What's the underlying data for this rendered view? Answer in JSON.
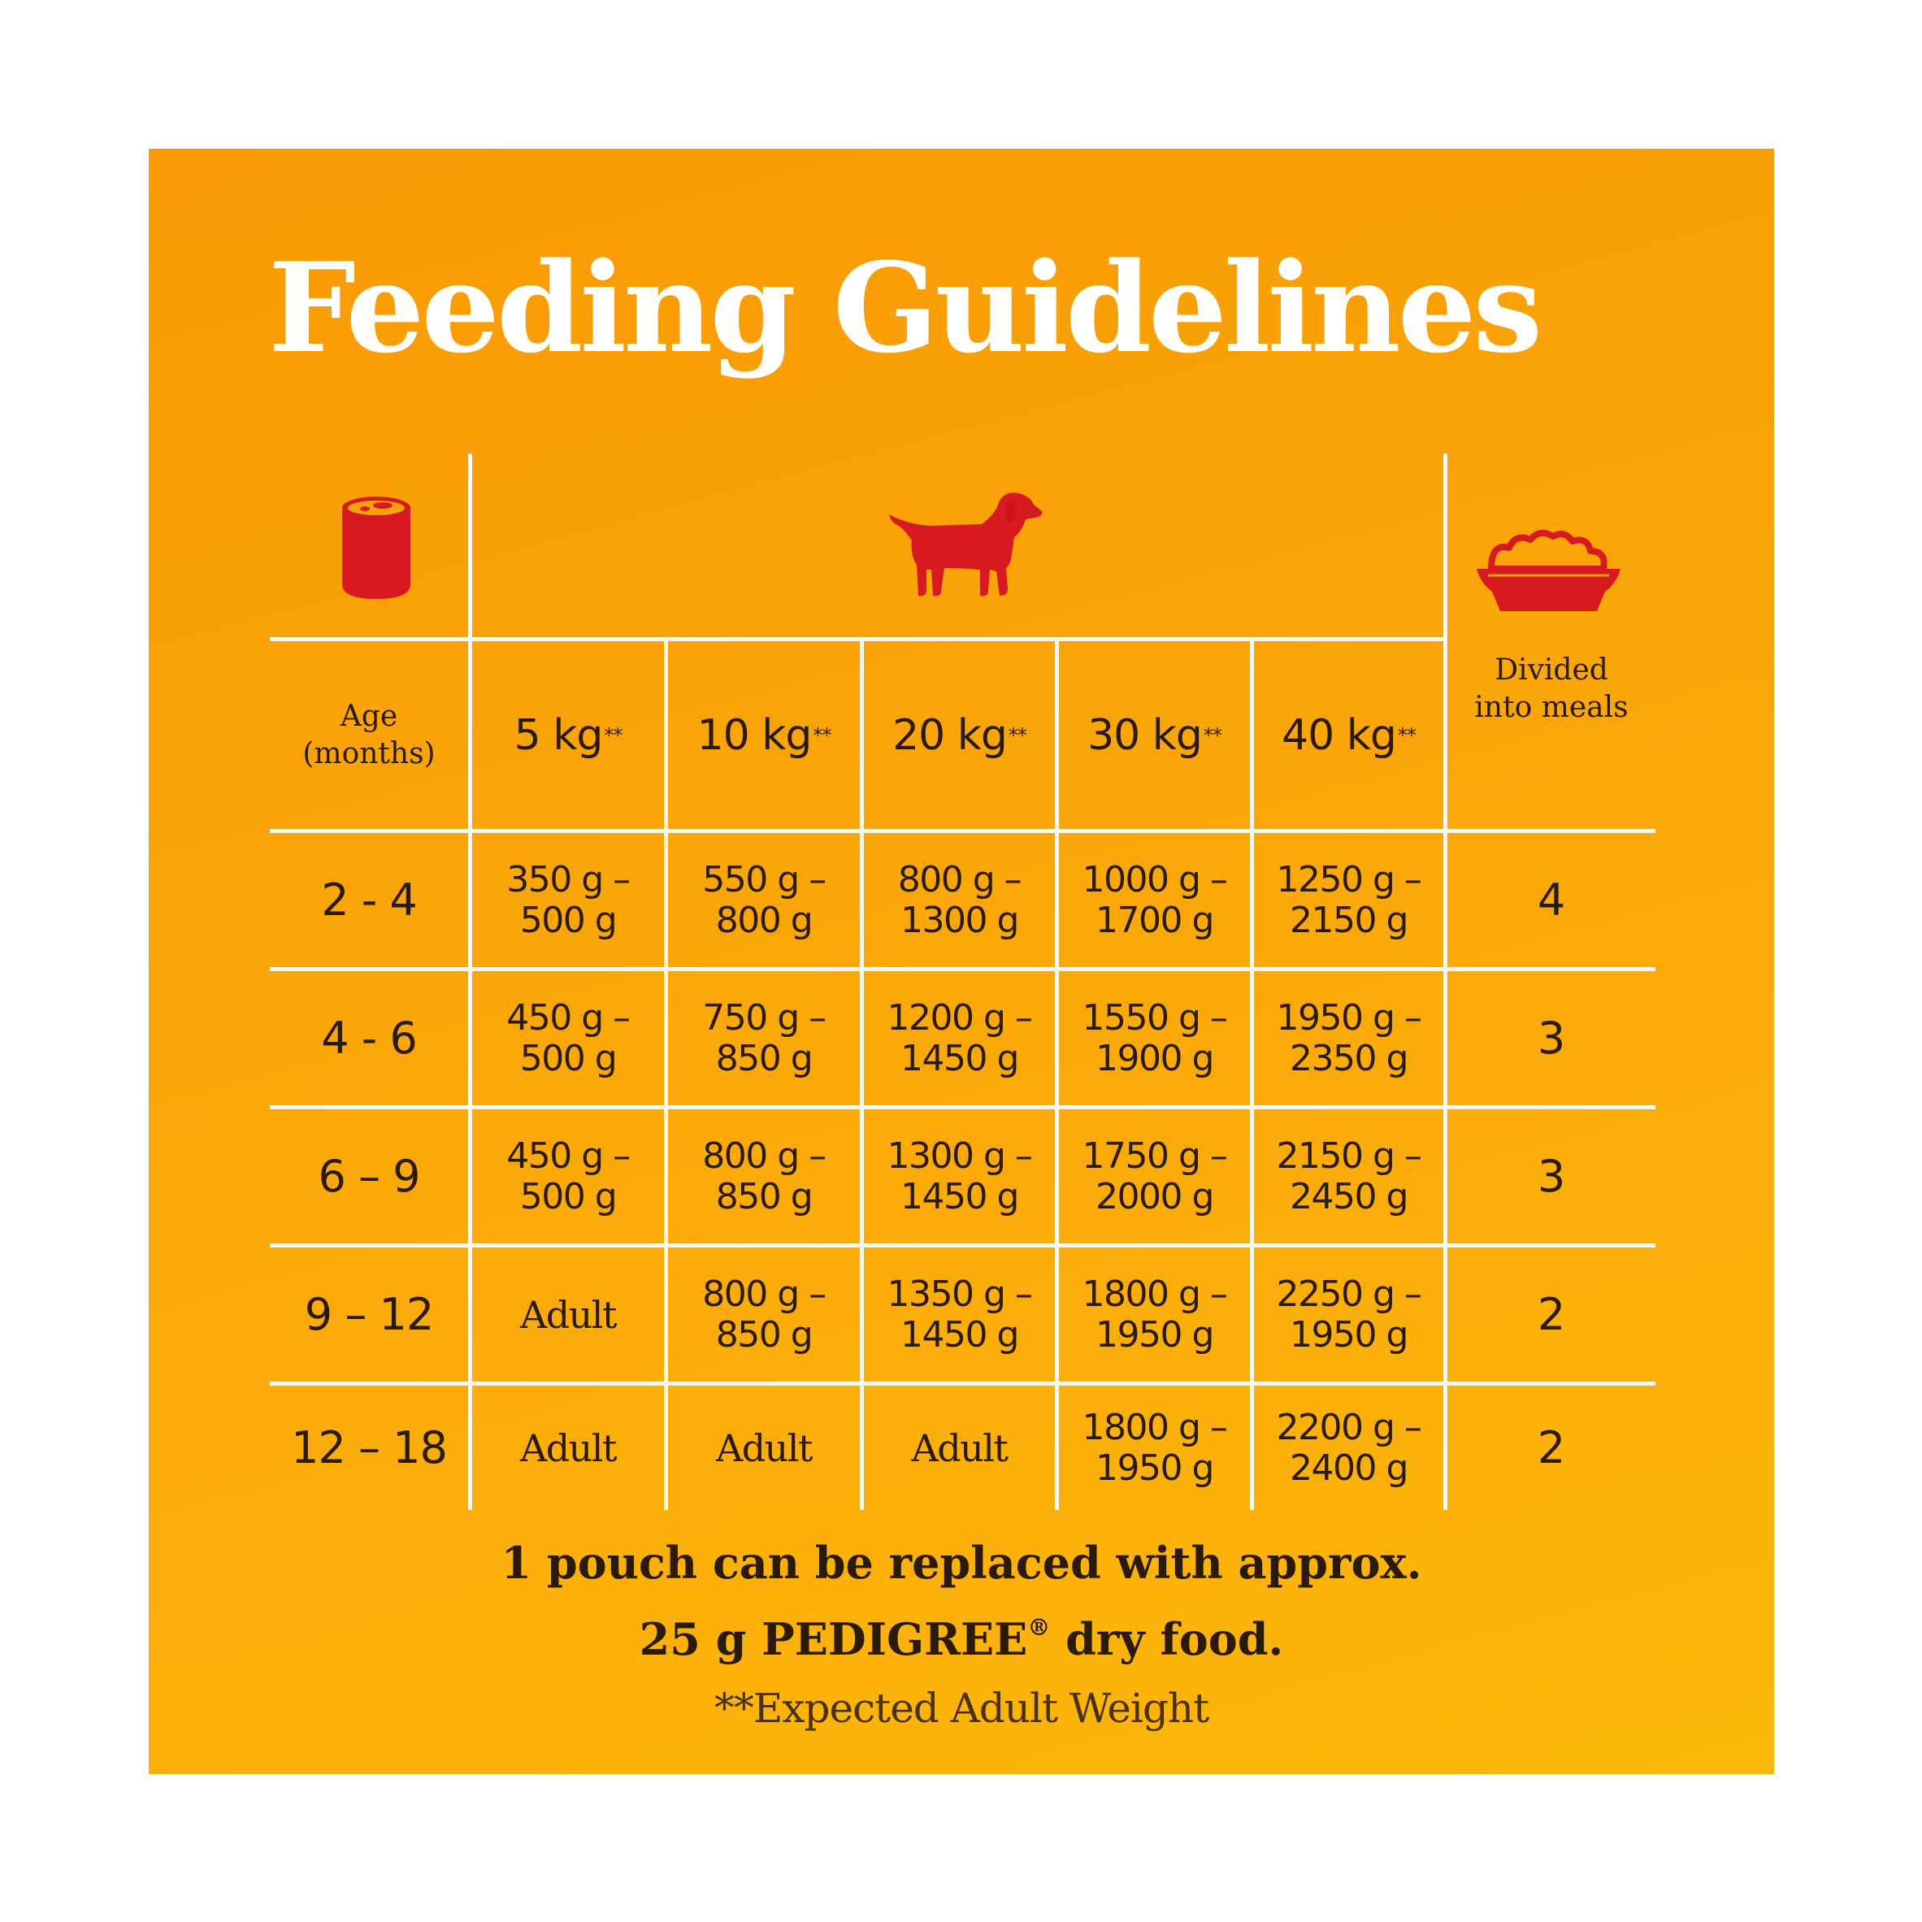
{
  "title": "Feeding Guidelines",
  "icons": {
    "pouch": "can-icon",
    "dog": "puppy-icon",
    "bowl": "food-bowl-icon"
  },
  "colors": {
    "panel_top": "#f99a06",
    "panel_bottom": "#fcb80b",
    "icon_red": "#d71920",
    "text": "#2b1a06"
  },
  "table": {
    "headers": {
      "age": "Age\n(months)",
      "weights": [
        {
          "label": "5 kg",
          "mark": "**"
        },
        {
          "label": "10 kg",
          "mark": "**"
        },
        {
          "label": "20 kg",
          "mark": "**"
        },
        {
          "label": "30 kg",
          "mark": "**"
        },
        {
          "label": "40 kg",
          "mark": "**"
        }
      ],
      "meals": "Divided\ninto meals"
    },
    "rows": [
      {
        "age": "2 - 4",
        "values": [
          "350 g –\n500 g",
          "550 g –\n800 g",
          "800 g –\n1300 g",
          "1000 g –\n1700 g",
          "1250 g –\n2150 g"
        ],
        "meals": "4"
      },
      {
        "age": "4 - 6",
        "values": [
          "450 g –\n500 g",
          "750 g –\n850 g",
          "1200 g –\n1450 g",
          "1550 g –\n1900 g",
          "1950 g –\n2350 g"
        ],
        "meals": "3"
      },
      {
        "age": "6 – 9",
        "values": [
          "450 g –\n500 g",
          "800 g –\n850 g",
          "1300 g –\n1450 g",
          "1750 g –\n2000 g",
          "2150 g –\n2450 g"
        ],
        "meals": "3"
      },
      {
        "age": "9 – 12",
        "values": [
          "Adult",
          "800 g –\n850 g",
          "1350 g –\n1450 g",
          "1800 g –\n1950 g",
          "2250 g –\n1950 g"
        ],
        "meals": "2"
      },
      {
        "age": "12 – 18",
        "values": [
          "Adult",
          "Adult",
          "Adult",
          "1800 g –\n1950 g",
          "2200 g –\n2400 g"
        ],
        "meals": "2"
      }
    ]
  },
  "note": {
    "line1": "1 pouch can be replaced with approx.",
    "line2_before": "25 g PEDIGREE",
    "line2_mark": "®",
    "line2_after": " dry food."
  },
  "footnote": "**Expected Adult Weight"
}
